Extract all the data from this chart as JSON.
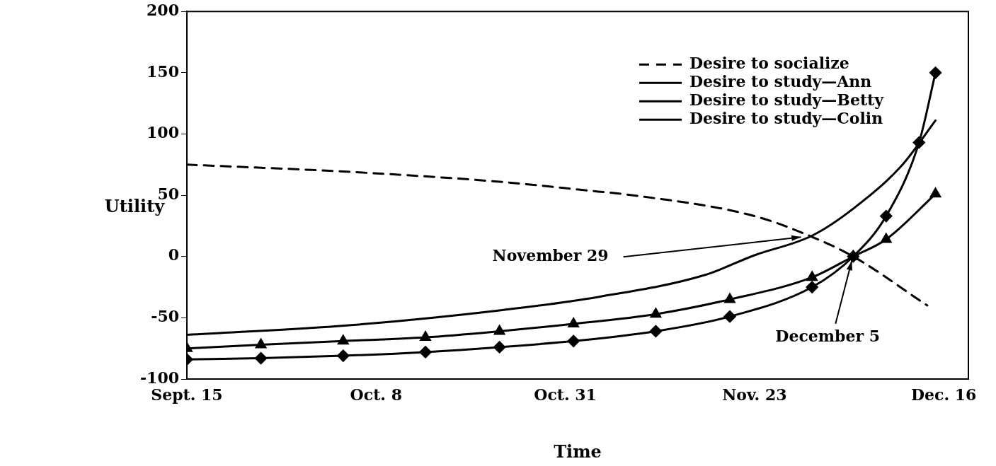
{
  "chart_data": {
    "type": "line",
    "xlabel": "Time",
    "ylabel": "Utility",
    "xlim": [
      "--09-15",
      "--12-19"
    ],
    "xticks": [
      {
        "value": "--09-15",
        "label": "Sept. 15"
      },
      {
        "value": "--10-08",
        "label": "Oct. 8"
      },
      {
        "value": "--10-31",
        "label": "Oct. 31"
      },
      {
        "value": "--11-23",
        "label": "Nov. 23"
      },
      {
        "value": "--12-16",
        "label": "Dec. 16"
      }
    ],
    "ylim": [
      -100,
      200
    ],
    "yticks": [
      -100,
      -50,
      0,
      50,
      100,
      150,
      200
    ],
    "grid": false,
    "legend": "top right",
    "series": [
      {
        "name": "Desire to socialize",
        "color": "#000000",
        "line_style": "dashed",
        "marker": "none",
        "x": [
          "--09-15",
          "--10-05",
          "--10-23",
          "--11-04",
          "--11-07",
          "--11-23",
          "--11-30",
          "--12-05",
          "--12-14"
        ],
        "values": [
          75,
          69,
          61,
          53,
          51,
          33,
          16,
          0,
          -40
        ]
      },
      {
        "name": "Desire to study—Ann",
        "color": "#000000",
        "line_style": "solid",
        "marker": "none",
        "x": [
          "--09-15",
          "--10-05",
          "--10-23",
          "--11-04",
          "--11-17",
          "--11-23",
          "--11-30",
          "--12-05",
          "--12-11",
          "--12-15"
        ],
        "values": [
          -64,
          -56,
          -44,
          -33,
          -15,
          1,
          17,
          39,
          75,
          111
        ]
      },
      {
        "name": "Desire to study—Betty",
        "color": "#000000",
        "line_style": "solid",
        "marker": "triangle",
        "x": [
          "--09-15",
          "--09-24",
          "--10-04",
          "--10-14",
          "--10-23",
          "--11-01",
          "--11-11",
          "--11-20",
          "--11-30",
          "--12-05",
          "--12-09",
          "--12-15"
        ],
        "values": [
          -75,
          -72,
          -69,
          -66,
          -61,
          -55,
          -47,
          -35,
          -17,
          0,
          14,
          51
        ]
      },
      {
        "name": "Desire to study—Colin",
        "color": "#000000",
        "line_style": "solid",
        "marker": "diamond",
        "x": [
          "--09-15",
          "--09-24",
          "--10-04",
          "--10-14",
          "--10-23",
          "--11-01",
          "--11-11",
          "--11-20",
          "--11-30",
          "--12-05",
          "--12-09",
          "--12-13",
          "--12-15"
        ],
        "values": [
          -84,
          -83,
          -81,
          -78,
          -74,
          -69,
          -61,
          -49,
          -25,
          0,
          33,
          93,
          150
        ]
      }
    ],
    "annotations": [
      {
        "text": "November 29",
        "x": "--11-29",
        "y": 17
      },
      {
        "text": "December 5",
        "x": "--12-05",
        "y": 0
      }
    ]
  }
}
